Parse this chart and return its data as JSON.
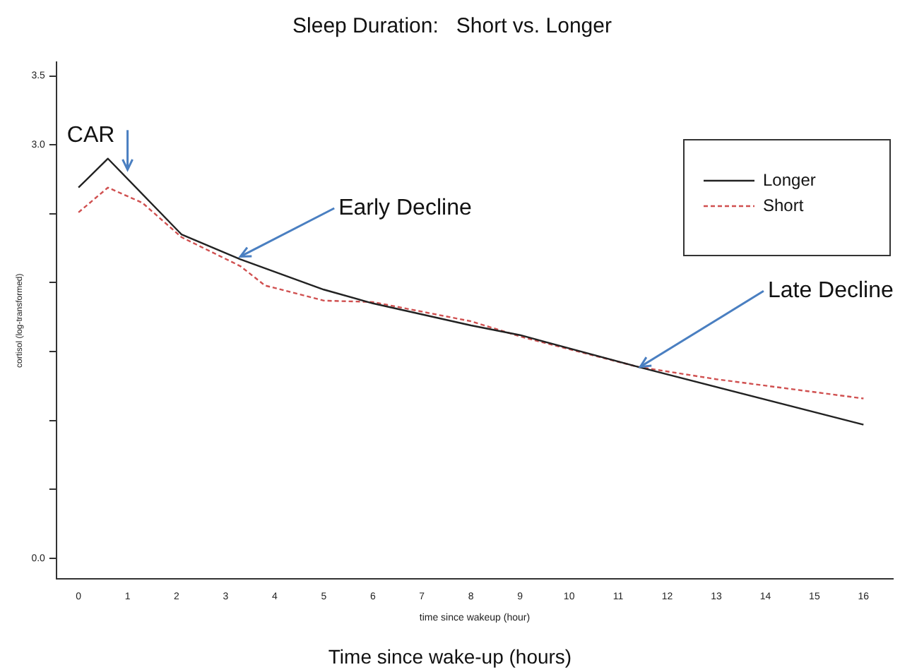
{
  "chart_data": {
    "type": "line",
    "title": "Sleep Duration:   Short vs. Longer",
    "xlabel": "time since wakeup (hour)",
    "ylabel": "cortisol (log-transformed)",
    "series": [
      {
        "name": "Longer",
        "color": "#222222",
        "line_style": "solid",
        "x": [
          0,
          0.6,
          2.1,
          3.3,
          5,
          6,
          8,
          9,
          11.4,
          16
        ],
        "values": [
          2.69,
          2.9,
          2.35,
          2.17,
          1.95,
          1.85,
          1.69,
          1.62,
          1.39,
          0.97
        ]
      },
      {
        "name": "Short",
        "color": "#d05050",
        "line_style": "dashed",
        "x": [
          0,
          0.6,
          1.3,
          2.1,
          3.3,
          3.8,
          5,
          6,
          8,
          9.1,
          11.4,
          13,
          16
        ],
        "values": [
          2.51,
          2.69,
          2.58,
          2.33,
          2.12,
          1.98,
          1.87,
          1.86,
          1.72,
          1.6,
          1.39,
          1.3,
          1.16
        ]
      }
    ],
    "xlim": [
      -0.45,
      16.6
    ],
    "xticks": [
      0,
      1,
      2,
      3,
      4,
      5,
      6,
      7,
      8,
      9,
      10,
      11,
      12,
      13,
      14,
      15,
      16
    ],
    "ylim": [
      -0.15,
      3.6
    ],
    "yticks": [
      {
        "value": 0,
        "label": "0.0"
      },
      {
        "value": 0.5,
        "label": null
      },
      {
        "value": 1,
        "label": null
      },
      {
        "value": 1.5,
        "label": null
      },
      {
        "value": 2,
        "label": null
      },
      {
        "value": 2.5,
        "label": null
      },
      {
        "value": 3,
        "label": "3.0"
      },
      {
        "value": 3.5,
        "label": "3.5"
      }
    ],
    "marker": "none",
    "legend": "top right",
    "grid": false,
    "annotations": [
      {
        "text": "CAR",
        "x": 1,
        "y": 2.82
      },
      {
        "text": "Early Decline",
        "x": 3.3,
        "y": 2.19
      },
      {
        "text": "Late Decline",
        "x": 11.45,
        "y": 1.39
      },
      "Time since wake-up (hours)"
    ]
  }
}
